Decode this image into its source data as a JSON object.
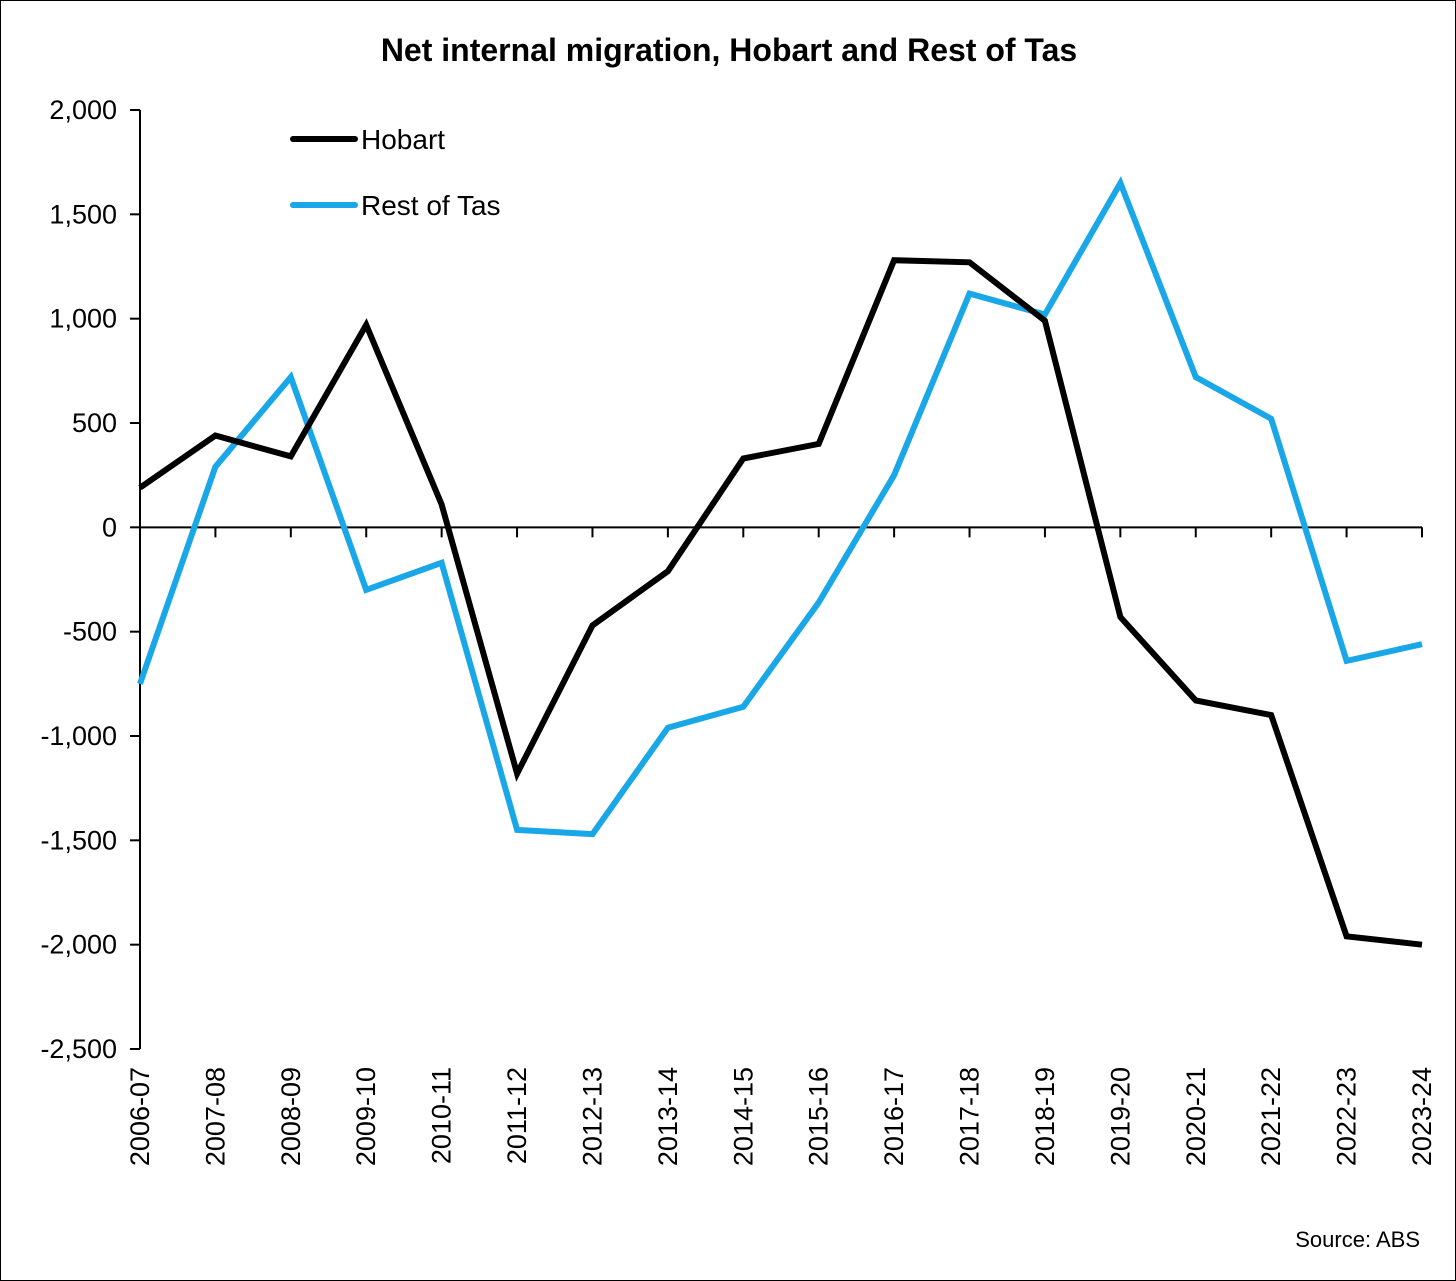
{
  "chart_data": {
    "type": "line",
    "title": "Net internal migration, Hobart and Rest of Tas",
    "xlabel": "",
    "ylabel": "",
    "categories": [
      "2006-07",
      "2007-08",
      "2008-09",
      "2009-10",
      "2010-11",
      "2011-12",
      "2012-13",
      "2013-14",
      "2014-15",
      "2015-16",
      "2016-17",
      "2017-18",
      "2018-19",
      "2019-20",
      "2020-21",
      "2021-22",
      "2022-23",
      "2023-24"
    ],
    "ylim": [
      -2500,
      2000
    ],
    "yticks": [
      2000,
      1500,
      1000,
      500,
      0,
      -500,
      -1000,
      -1500,
      -2000,
      -2500
    ],
    "ytick_labels": [
      "2,000",
      "1,500",
      "1,000",
      "500",
      "0",
      "-500",
      "-1,000",
      "-1,500",
      "-2,000",
      "-2,500"
    ],
    "grid": false,
    "legend_position": "top-left",
    "source": "Source: ABS",
    "series": [
      {
        "name": "Hobart",
        "color": "#000000",
        "values": [
          190,
          440,
          340,
          970,
          110,
          -1180,
          -470,
          -210,
          330,
          400,
          1280,
          1270,
          990,
          -430,
          -830,
          -900,
          -1960,
          -2000
        ]
      },
      {
        "name": "Rest of Tas",
        "color": "#1aa7e8",
        "values": [
          -750,
          290,
          720,
          -300,
          -170,
          -1450,
          -1470,
          -960,
          -860,
          -360,
          250,
          1120,
          1020,
          1650,
          720,
          520,
          -640,
          -560
        ]
      }
    ]
  }
}
